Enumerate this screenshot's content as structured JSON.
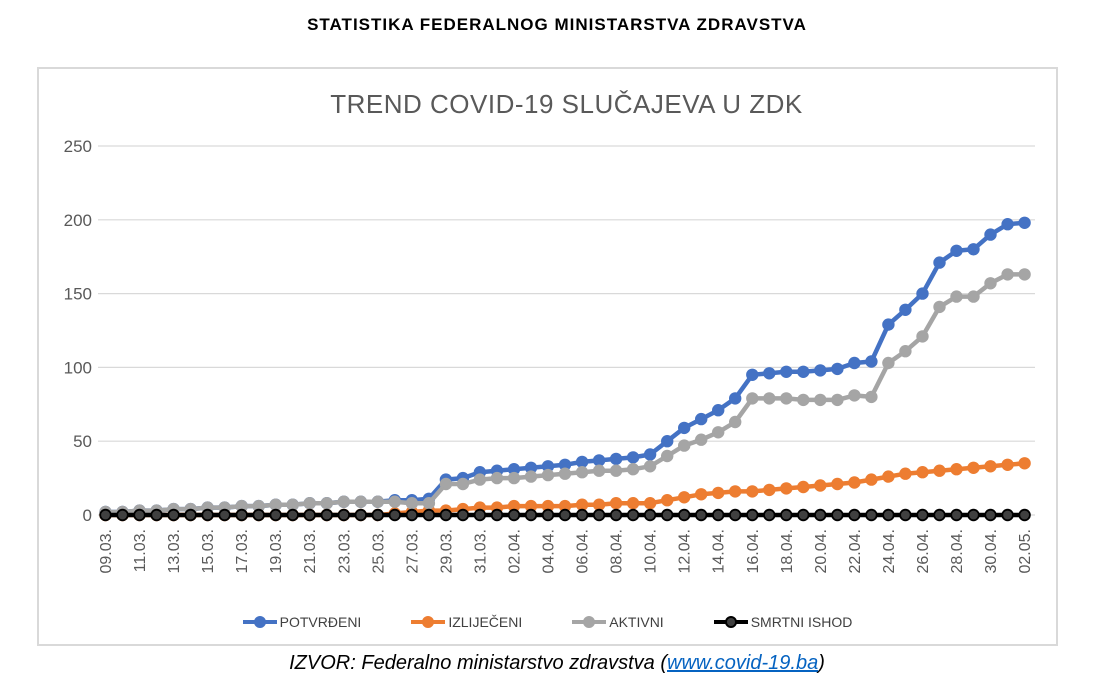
{
  "page_title": "STATISTIKA FEDERALNOG MINISTARSTVA ZDRAVSTVA",
  "chart_data": {
    "type": "line",
    "title": "TREND COVID-19 SLUČAJEVA U ZDK",
    "xlabel": "",
    "ylabel": "",
    "ylim": [
      0,
      250
    ],
    "y_ticks": [
      0,
      50,
      100,
      150,
      200,
      250
    ],
    "grid": true,
    "legend_position": "bottom",
    "x_tick_every": 2,
    "categories": [
      "09.03.",
      "10.03.",
      "11.03.",
      "12.03.",
      "13.03.",
      "14.03.",
      "15.03.",
      "16.03.",
      "17.03.",
      "18.03.",
      "19.03.",
      "20.03.",
      "21.03.",
      "22.03.",
      "23.03.",
      "24.03.",
      "25.03.",
      "26.03.",
      "27.03.",
      "28.03.",
      "29.03.",
      "30.03.",
      "31.03.",
      "01.04.",
      "02.04.",
      "03.04.",
      "04.04.",
      "05.04.",
      "06.04.",
      "07.04.",
      "08.04.",
      "09.04.",
      "10.04.",
      "11.04.",
      "12.04.",
      "13.04.",
      "14.04.",
      "15.04.",
      "16.04.",
      "17.04.",
      "18.04.",
      "19.04.",
      "20.04.",
      "21.04.",
      "22.04.",
      "23.04.",
      "24.04.",
      "25.04.",
      "26.04.",
      "27.04.",
      "28.04.",
      "29.04.",
      "30.04.",
      "01.05.",
      "02.05."
    ],
    "series": [
      {
        "name": "POTVRĐENI",
        "color": "#4472C4",
        "marker_fill": "#4472C4",
        "values": [
          2,
          2,
          3,
          3,
          4,
          4,
          5,
          5,
          6,
          6,
          7,
          7,
          8,
          8,
          9,
          9,
          9,
          10,
          10,
          11,
          24,
          25,
          29,
          30,
          31,
          32,
          33,
          34,
          36,
          37,
          38,
          39,
          41,
          50,
          59,
          65,
          71,
          79,
          95,
          96,
          97,
          97,
          98,
          99,
          103,
          104,
          129,
          139,
          150,
          171,
          179,
          180,
          190,
          197,
          198
        ]
      },
      {
        "name": "IZLIJEČENI",
        "color": "#ED7D31",
        "marker_fill": "#ED7D31",
        "values": [
          0,
          0,
          0,
          0,
          0,
          0,
          0,
          0,
          0,
          0,
          0,
          0,
          0,
          0,
          0,
          0,
          0,
          1,
          2,
          3,
          3,
          4,
          5,
          5,
          6,
          6,
          6,
          6,
          7,
          7,
          8,
          8,
          8,
          10,
          12,
          14,
          15,
          16,
          16,
          17,
          18,
          19,
          20,
          21,
          22,
          24,
          26,
          28,
          29,
          30,
          31,
          32,
          33,
          34,
          35
        ]
      },
      {
        "name": "AKTIVNI",
        "color": "#A5A5A5",
        "marker_fill": "#A5A5A5",
        "values": [
          2,
          2,
          3,
          3,
          4,
          4,
          5,
          5,
          6,
          6,
          7,
          7,
          8,
          8,
          9,
          9,
          9,
          9,
          8,
          8,
          21,
          21,
          24,
          25,
          25,
          26,
          27,
          28,
          29,
          30,
          30,
          31,
          33,
          40,
          47,
          51,
          56,
          63,
          79,
          79,
          79,
          78,
          78,
          78,
          81,
          80,
          103,
          111,
          121,
          141,
          148,
          148,
          157,
          163,
          163
        ]
      },
      {
        "name": "SMRTNI ISHOD",
        "color": "#000000",
        "marker_fill": "#404040",
        "values": [
          0,
          0,
          0,
          0,
          0,
          0,
          0,
          0,
          0,
          0,
          0,
          0,
          0,
          0,
          0,
          0,
          0,
          0,
          0,
          0,
          0,
          0,
          0,
          0,
          0,
          0,
          0,
          0,
          0,
          0,
          0,
          0,
          0,
          0,
          0,
          0,
          0,
          0,
          0,
          0,
          0,
          0,
          0,
          0,
          0,
          0,
          0,
          0,
          0,
          0,
          0,
          0,
          0,
          0,
          0
        ]
      }
    ]
  },
  "footer": {
    "prefix": "IZVOR: Federalno ministarstvo zdravstva (",
    "link": "www.covid-19.ba",
    "suffix": ")",
    "link_color": "#0563C1"
  }
}
